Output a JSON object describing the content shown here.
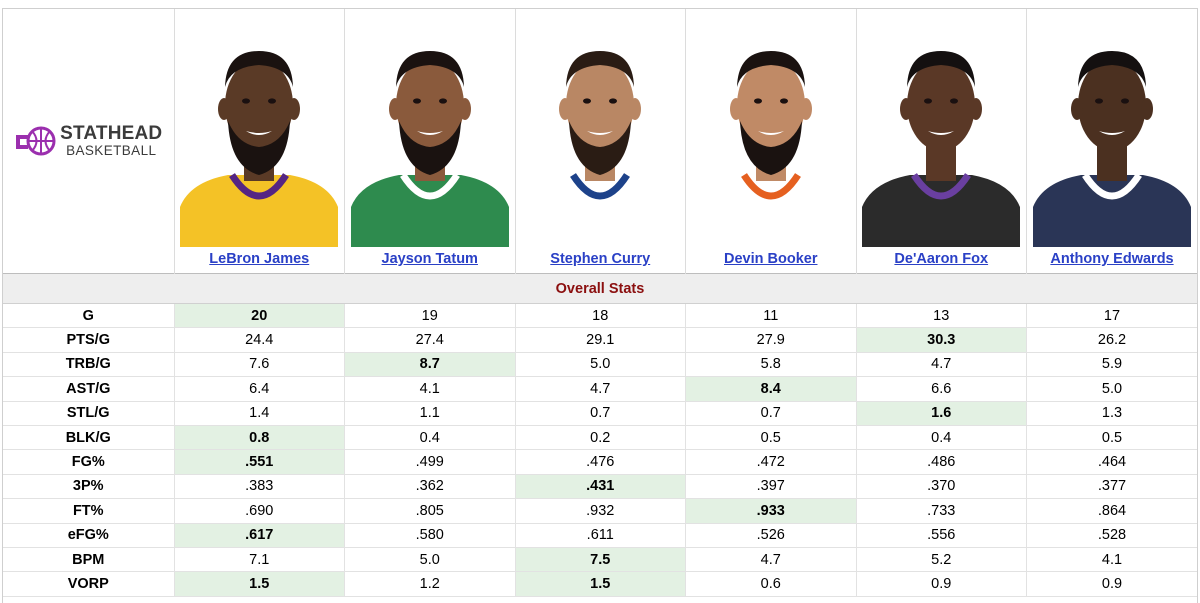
{
  "logo": {
    "line1": "STATHEAD",
    "line2": "BASKETBALL",
    "brand_color": "#9b2fae"
  },
  "players": [
    {
      "name": "LeBron James",
      "jersey": "#f4c226",
      "trim": "#552583",
      "skin": "#5a3a26",
      "hair": "#1a1210",
      "beard": true,
      "back": "#ffffff"
    },
    {
      "name": "Jayson Tatum",
      "jersey": "#2e8b4e",
      "trim": "#ffffff",
      "skin": "#8a5a3c",
      "hair": "#1a1210",
      "beard": true,
      "back": "#ffffff"
    },
    {
      "name": "Stephen Curry",
      "jersey": "#ffffff",
      "trim": "#1d428a",
      "skin": "#b98764",
      "hair": "#2a1c14",
      "beard": true,
      "back": "#ffffff"
    },
    {
      "name": "Devin Booker",
      "jersey": "#ffffff",
      "trim": "#e56020",
      "skin": "#c08a66",
      "hair": "#1a1210",
      "beard": true,
      "back": "#ffffff"
    },
    {
      "name": "De'Aaron Fox",
      "jersey": "#2b2b2b",
      "trim": "#6a3fa0",
      "skin": "#5a3826",
      "hair": "#141010",
      "beard": false,
      "back": "#ffffff"
    },
    {
      "name": "Anthony Edwards",
      "jersey": "#2a3556",
      "trim": "#ffffff",
      "skin": "#4b3020",
      "hair": "#141010",
      "beard": false,
      "back": "#ffffff"
    }
  ],
  "section_title": "Overall Stats",
  "highlight_color": "#e3f1e3",
  "rows": [
    {
      "label": "G",
      "values": [
        "20",
        "19",
        "18",
        "11",
        "13",
        "17"
      ],
      "best": [
        0
      ]
    },
    {
      "label": "PTS/G",
      "values": [
        "24.4",
        "27.4",
        "29.1",
        "27.9",
        "30.3",
        "26.2"
      ],
      "best": [
        4
      ]
    },
    {
      "label": "TRB/G",
      "values": [
        "7.6",
        "8.7",
        "5.0",
        "5.8",
        "4.7",
        "5.9"
      ],
      "best": [
        1
      ]
    },
    {
      "label": "AST/G",
      "values": [
        "6.4",
        "4.1",
        "4.7",
        "8.4",
        "6.6",
        "5.0"
      ],
      "best": [
        3
      ]
    },
    {
      "label": "STL/G",
      "values": [
        "1.4",
        "1.1",
        "0.7",
        "0.7",
        "1.6",
        "1.3"
      ],
      "best": [
        4
      ]
    },
    {
      "label": "BLK/G",
      "values": [
        "0.8",
        "0.4",
        "0.2",
        "0.5",
        "0.4",
        "0.5"
      ],
      "best": [
        0
      ]
    },
    {
      "label": "FG%",
      "values": [
        ".551",
        ".499",
        ".476",
        ".472",
        ".486",
        ".464"
      ],
      "best": [
        0
      ]
    },
    {
      "label": "3P%",
      "values": [
        ".383",
        ".362",
        ".431",
        ".397",
        ".370",
        ".377"
      ],
      "best": [
        2
      ]
    },
    {
      "label": "FT%",
      "values": [
        ".690",
        ".805",
        ".932",
        ".933",
        ".733",
        ".864"
      ],
      "best": [
        3
      ]
    },
    {
      "label": "eFG%",
      "values": [
        ".617",
        ".580",
        ".611",
        ".526",
        ".556",
        ".528"
      ],
      "best": [
        0
      ]
    },
    {
      "label": "BPM",
      "values": [
        "7.1",
        "5.0",
        "7.5",
        "4.7",
        "5.2",
        "4.1"
      ],
      "best": [
        2
      ]
    },
    {
      "label": "VORP",
      "values": [
        "1.5",
        "1.2",
        "1.5",
        "0.6",
        "0.9",
        "0.9"
      ],
      "best": [
        0,
        2
      ]
    }
  ]
}
